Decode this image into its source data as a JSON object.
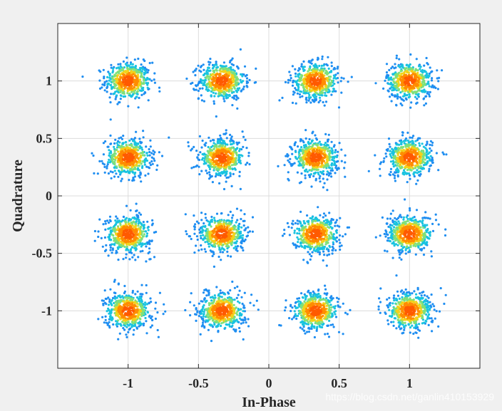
{
  "chart_data": {
    "type": "scatter",
    "title": "",
    "xlabel": "In-Phase",
    "ylabel": "Quadrature",
    "xlim": [
      -1.5,
      1.5
    ],
    "ylim": [
      -1.5,
      1.5
    ],
    "grid": true,
    "xticks": [
      -1,
      -0.5,
      0,
      0.5,
      1
    ],
    "xtick_labels": [
      "-1",
      "-0.5",
      "0",
      "0.5",
      "1"
    ],
    "yticks": [
      -1,
      -0.5,
      0,
      0.5,
      1
    ],
    "ytick_labels": [
      "-1",
      "-0.5",
      "0",
      "0.5",
      "1"
    ],
    "constellation_points": [
      {
        "i": -1,
        "q": 1
      },
      {
        "i": -0.333,
        "q": 1
      },
      {
        "i": 0.333,
        "q": 1
      },
      {
        "i": 1,
        "q": 1
      },
      {
        "i": -1,
        "q": 0.333
      },
      {
        "i": -0.333,
        "q": 0.333
      },
      {
        "i": 0.333,
        "q": 0.333
      },
      {
        "i": 1,
        "q": 0.333
      },
      {
        "i": -1,
        "q": -0.333
      },
      {
        "i": -0.333,
        "q": -0.333
      },
      {
        "i": 0.333,
        "q": -0.333
      },
      {
        "i": 1,
        "q": -0.333
      },
      {
        "i": -1,
        "q": -1
      },
      {
        "i": -0.333,
        "q": -1
      },
      {
        "i": 0.333,
        "q": -1
      },
      {
        "i": 1,
        "q": -1
      }
    ],
    "noise_std": 0.08,
    "points_per_cluster": 520,
    "color_scale": [
      "#1f8ef1",
      "#19c3e0",
      "#7fe07a",
      "#f2d21b",
      "#ff8c00",
      "#ff5a00"
    ]
  },
  "watermark": "https://blog.csdn.net/ganlin410153929"
}
